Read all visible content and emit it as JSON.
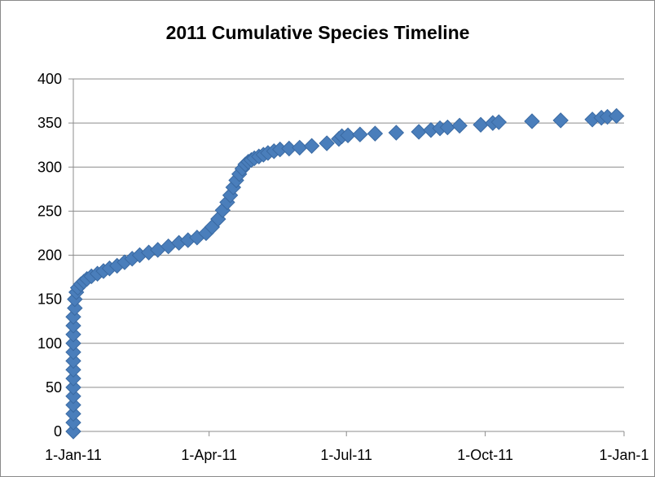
{
  "chart_data": {
    "type": "scatter",
    "title": "2011 Cumulative Species Timeline",
    "xlabel": "",
    "ylabel": "",
    "xlim": [
      "2011-01-01",
      "2012-01-01"
    ],
    "ylim": [
      0,
      400
    ],
    "x_ticks": [
      "1-Jan-11",
      "1-Apr-11",
      "1-Jul-11",
      "1-Oct-11",
      "1-Jan-1"
    ],
    "y_ticks": [
      "0",
      "50",
      "100",
      "150",
      "200",
      "250",
      "300",
      "350",
      "400"
    ],
    "grid": "horizontal",
    "legend": "none",
    "marker": "diamond",
    "marker_color": "#4a7ebb",
    "series": [
      {
        "x": [
          "2011-01-01",
          "2011-01-01",
          "2011-01-01",
          "2011-01-01",
          "2011-01-01",
          "2011-01-01",
          "2011-01-01",
          "2011-01-01",
          "2011-01-01",
          "2011-01-01",
          "2011-01-01",
          "2011-01-01",
          "2011-01-01",
          "2011-01-01",
          "2011-01-02",
          "2011-01-02",
          "2011-01-03",
          "2011-01-04",
          "2011-01-06",
          "2011-01-08",
          "2011-01-10",
          "2011-01-13",
          "2011-01-17",
          "2011-01-21",
          "2011-01-25",
          "2011-01-30",
          "2011-02-04",
          "2011-02-09",
          "2011-02-14",
          "2011-02-20",
          "2011-02-26",
          "2011-03-05",
          "2011-03-12",
          "2011-03-18",
          "2011-03-24",
          "2011-03-30",
          "2011-04-03",
          "2011-04-07",
          "2011-04-10",
          "2011-04-13",
          "2011-04-15",
          "2011-04-17",
          "2011-04-19",
          "2011-04-21",
          "2011-04-23",
          "2011-04-25",
          "2011-04-27",
          "2011-04-29",
          "2011-05-01",
          "2011-05-04",
          "2011-05-07",
          "2011-05-10",
          "2011-05-14",
          "2011-05-18",
          "2011-05-24",
          "2011-05-31",
          "2011-06-08",
          "2011-06-18",
          "2011-06-26",
          "2011-06-28",
          "2011-07-02",
          "2011-07-10",
          "2011-07-20",
          "2011-08-03",
          "2011-08-18",
          "2011-08-26",
          "2011-09-01",
          "2011-09-06",
          "2011-09-14",
          "2011-09-28",
          "2011-10-06",
          "2011-10-10",
          "2011-11-01",
          "2011-11-20",
          "2011-12-11",
          "2011-12-17",
          "2011-12-21",
          "2011-12-27"
        ],
        "y": [
          0,
          10,
          20,
          30,
          40,
          50,
          60,
          70,
          80,
          90,
          100,
          110,
          120,
          130,
          140,
          150,
          158,
          163,
          167,
          170,
          173,
          176,
          179,
          182,
          185,
          188,
          192,
          196,
          200,
          203,
          206,
          210,
          214,
          217,
          220,
          225,
          232,
          241,
          251,
          260,
          268,
          277,
          285,
          292,
          298,
          303,
          306,
          308,
          310,
          312,
          314,
          316,
          318,
          320,
          321,
          322,
          324,
          327,
          332,
          335,
          336,
          337,
          338,
          339,
          340,
          342,
          344,
          345,
          347,
          348,
          350,
          351,
          352,
          353,
          354,
          356,
          357,
          358
        ]
      }
    ]
  }
}
